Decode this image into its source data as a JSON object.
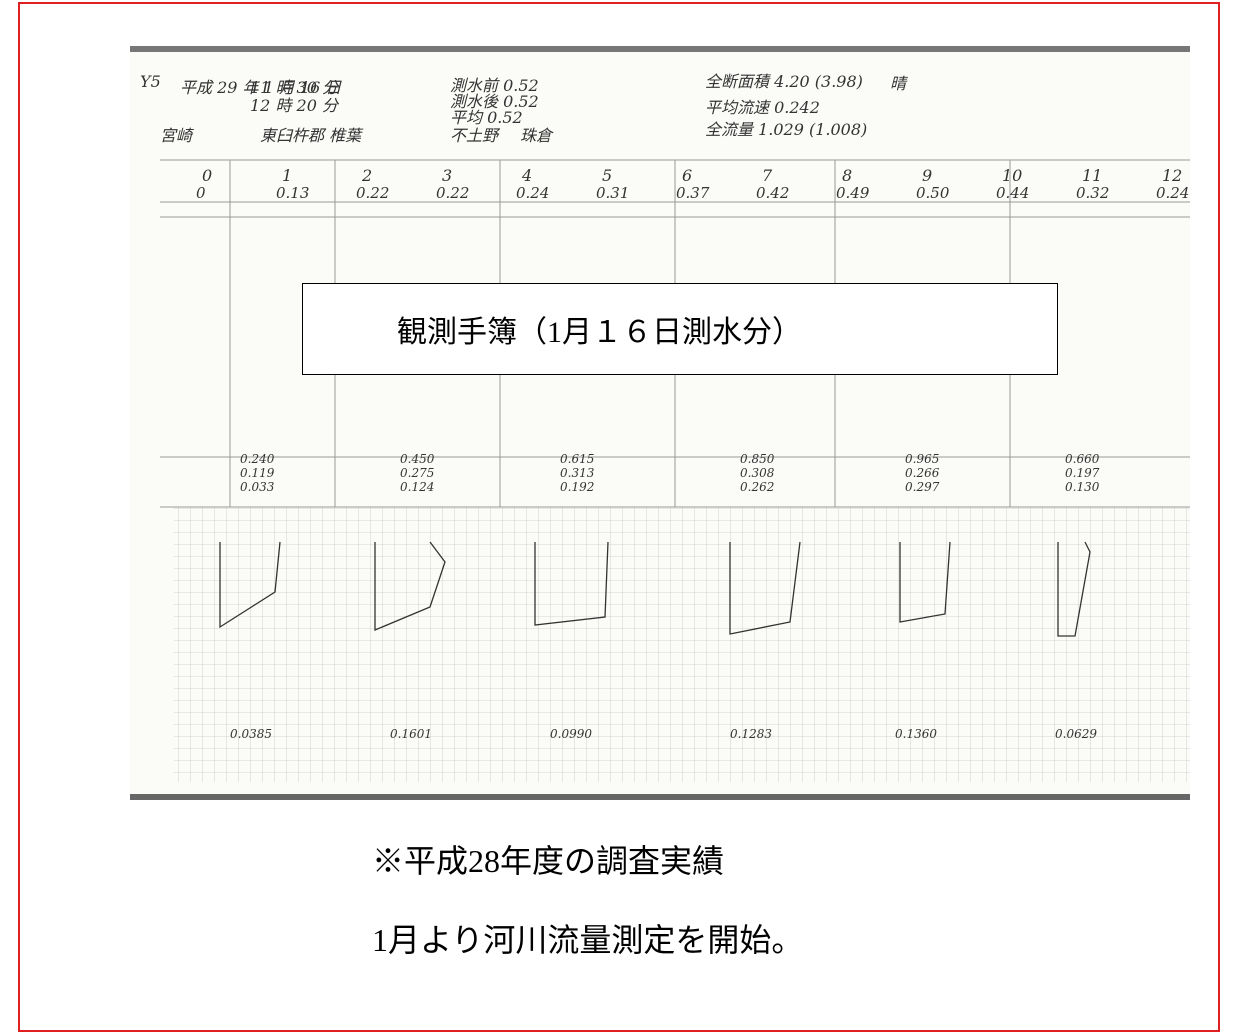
{
  "sheet": {
    "header": [
      {
        "text": "Y5",
        "x": 0
      },
      {
        "text": "平成 29 年 1 月 16 日"
      },
      {
        "text": "11 時 30 分"
      },
      {
        "text": "12 時 20 分"
      },
      {
        "text": "測水前 0.52"
      },
      {
        "text": "測水後 0.52"
      },
      {
        "text": "平均 0.52"
      },
      {
        "text": "全断面積 4.20 (3.98)"
      },
      {
        "text": "平均流速 0.242"
      },
      {
        "text": "全流量 1.029 (1.008)"
      },
      {
        "text": "晴"
      },
      {
        "text": "宮崎"
      },
      {
        "text": "東臼杵郡 椎葉"
      },
      {
        "text": "不土野"
      },
      {
        "text": "珠倉"
      }
    ],
    "stations": [
      {
        "no": "0",
        "depth": "0"
      },
      {
        "no": "1",
        "depth": "0.13"
      },
      {
        "no": "2",
        "depth": "0.22"
      },
      {
        "no": "3",
        "depth": "0.22"
      },
      {
        "no": "4",
        "depth": "0.24"
      },
      {
        "no": "5",
        "depth": "0.31"
      },
      {
        "no": "6",
        "depth": "0.37"
      },
      {
        "no": "7",
        "depth": "0.42"
      },
      {
        "no": "8",
        "depth": "0.49"
      },
      {
        "no": "9",
        "depth": "0.50"
      },
      {
        "no": "10",
        "depth": "0.44"
      },
      {
        "no": "11",
        "depth": "0.32"
      },
      {
        "no": "12",
        "depth": "0.24"
      }
    ],
    "sections": [
      {
        "summary": [
          "0.240",
          "0.119",
          "0.033"
        ],
        "total": "0.0385"
      },
      {
        "summary": [
          "0.450",
          "0.275",
          "0.124"
        ],
        "total": "0.1601"
      },
      {
        "summary": [
          "0.615",
          "0.313",
          "0.192"
        ],
        "total": "0.0990"
      },
      {
        "summary": [
          "0.850",
          "0.308",
          "0.262"
        ],
        "total": "0.1283"
      },
      {
        "summary": [
          "0.965",
          "0.266",
          "0.297"
        ],
        "total": "0.1360"
      },
      {
        "summary": [
          "0.660",
          "0.197",
          "0.130"
        ],
        "total": "0.0629"
      }
    ]
  },
  "callout": "観測手簿（1月１６日測水分）",
  "caption": [
    "※平成28年度の調査実績",
    "1月より河川流量測定を開始。"
  ]
}
